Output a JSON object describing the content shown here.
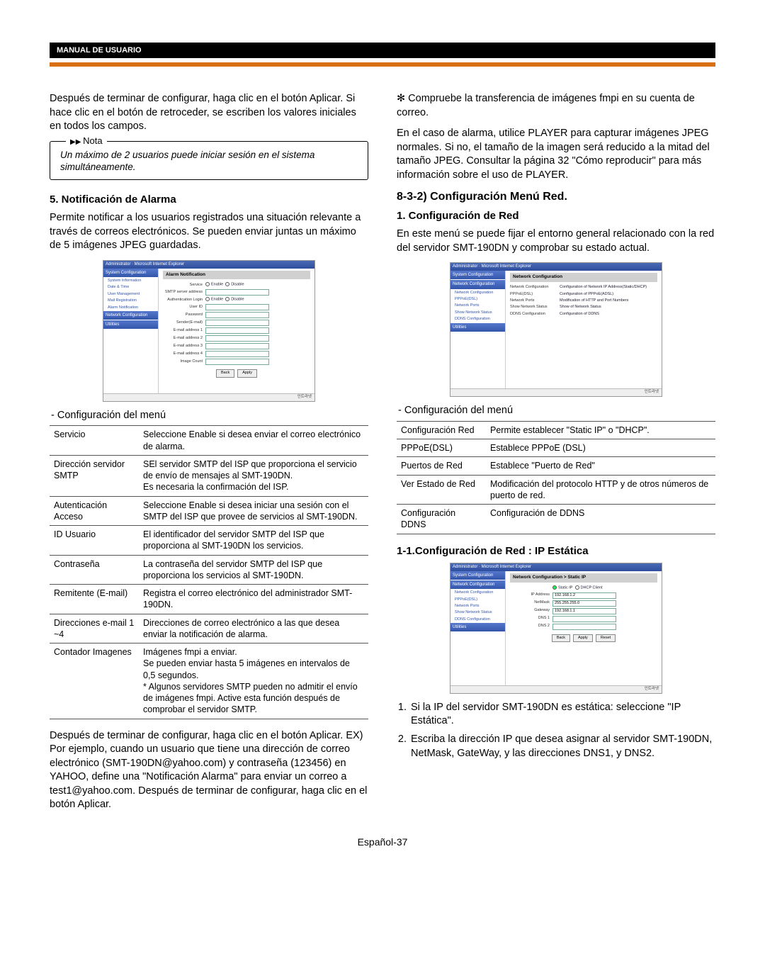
{
  "header": {
    "tab": "MANUAL DE USUARIO"
  },
  "left": {
    "p1": "Después de terminar de configurar, haga clic en el botón Aplicar. Si hace clic en el botón de retroceder, se escriben los valores iniciales en todos los campos.",
    "note_label": "Nota",
    "note_text": "Un máximo de 2 usuarios puede iniciar sesión en el sistema simultáneamente.",
    "h5": "5. Notificación de Alarma",
    "p2": "Permite notificar a los usuarios registrados una situación relevante a través de correos electrónicos. Se pueden enviar juntas un máximo de 5 imágenes JPEG guardadas.",
    "ss1": {
      "title": "Administrator · Microsoft Internet Explorer",
      "side_h1": "System Configuration",
      "side_items1": [
        "System Information",
        "Date & Time",
        "User Management",
        "Mail Registration",
        "Alarm Notification"
      ],
      "side_h2": "Network Configuration",
      "side_h3": "Utilities",
      "main_h": "Alarm Notification",
      "rows": [
        {
          "lab": "Service",
          "type": "radio",
          "a": "Enable",
          "b": "Disable"
        },
        {
          "lab": "SMTP server address",
          "type": "input"
        },
        {
          "lab": "Authentication Login",
          "type": "radio",
          "a": "Enable",
          "b": "Disable"
        },
        {
          "lab": "User ID",
          "type": "input"
        },
        {
          "lab": "Password",
          "type": "input"
        },
        {
          "lab": "Sender(E-mail)",
          "type": "input"
        },
        {
          "lab": "E-mail address 1",
          "type": "input"
        },
        {
          "lab": "E-mail address 2",
          "type": "input"
        },
        {
          "lab": "E-mail address 3",
          "type": "input"
        },
        {
          "lab": "E-mail address 4",
          "type": "input"
        },
        {
          "lab": "Image Count",
          "type": "input"
        }
      ],
      "btns": [
        "Back",
        "Apply"
      ]
    },
    "cfg_label": "-  Configuración del menú",
    "table1": [
      [
        "Servicio",
        "Seleccione Enable si desea enviar el correo electrónico de alarma."
      ],
      [
        "Dirección servidor SMTP",
        "SEl servidor SMTP del ISP que proporciona el servicio de envío de mensajes al SMT-190DN.\nEs necesaria la confirmación del ISP."
      ],
      [
        "Autenticación Acceso",
        "Seleccione Enable si desea iniciar una sesión con el SMTP del ISP que provee de servicios al SMT-190DN."
      ],
      [
        "ID Usuario",
        "El identificador del servidor SMTP del ISP que proporciona al SMT-190DN los servicios."
      ],
      [
        "Contraseña",
        "La contraseña del servidor SMTP del ISP que proporciona los servicios al SMT-190DN."
      ],
      [
        "Remitente (E-mail)",
        "Registra el correo electrónico del administrador SMT-190DN."
      ],
      [
        "Direcciones e-mail 1 ~4",
        "Direcciones de correo electrónico a las que desea enviar la notificación de alarma."
      ],
      [
        "Contador Imagenes",
        "Imágenes fmpi a enviar.\nSe pueden enviar hasta 5 imágenes en intervalos de 0,5 segundos.\n*   Algunos servidores SMTP pueden no admitir el envío de imágenes fmpi. Active esta función después de comprobar el servidor SMTP."
      ]
    ],
    "p3": "Después de terminar de configurar, haga clic en el botón Aplicar. EX) Por ejemplo, cuando un usuario que tiene una dirección de correo electrónico (SMT-190DN@yahoo.com) y contraseña (123456) en YAHOO, define una \"Notificación Alarma\" para enviar un correo a test1@yahoo.com. Después de terminar de configurar, haga clic en el botón Aplicar."
  },
  "right": {
    "star": "✻ Compruebe la transferencia de imágenes fmpi en su cuenta de correo.",
    "p1": "En el caso de alarma, utilice PLAYER para capturar imágenes JPEG normales. Si no, el tamaño de la imagen será reducido a la mitad del tamaño JPEG. Consultar la página 32 \"Cómo reproducir\" para más información sobre el uso de PLAYER.",
    "h832": "8-3-2)   Configuración Menú Red.",
    "h1": "1. Configuración de Red",
    "p2": "En este menú se puede fijar el entorno general relacionado con la red del servidor SMT-190DN y comprobar su estado actual.",
    "ss2": {
      "title": "Administrator · Microsoft Internet Explorer",
      "side_h1": "System Configuration",
      "side_h2": "Network Configuration",
      "side_items": [
        "Network Configuration",
        "PPPoE(DSL)",
        "Network Ports",
        "Show Network Status",
        "DDNS Configuration"
      ],
      "side_h3": "Utilities",
      "main_h": "Network Configuration",
      "rows2": [
        [
          "Network Configuration",
          "Configuration of Network IP Address(Static/DHCP)"
        ],
        [
          "PPPoE(DSL)",
          "Configuration of PPPoE(ADSL)"
        ],
        [
          "Network Ports",
          "Modification of HTTP and Port Numbers"
        ],
        [
          "Show Network Status",
          "Show of Network Status"
        ],
        [
          "DDNS Configuration",
          "Configuration of DDNS"
        ]
      ]
    },
    "cfg_label": "-  Configuración del menú",
    "table2": [
      [
        "Configuración Red",
        "Permite establecer \"Static IP\" o \"DHCP\"."
      ],
      [
        "PPPoE(DSL)",
        "Establece PPPoE (DSL)"
      ],
      [
        "Puertos de Red",
        "Establece \"Puerto de Red\""
      ],
      [
        "Ver Estado de Red",
        "Modificación del protocolo HTTP y de otros números de puerto de red."
      ],
      [
        "Configuración DDNS",
        "Configuración de DDNS"
      ]
    ],
    "h11": "1-1.Configuración de Red : IP Estática",
    "ss3": {
      "title": "Administrator · Microsoft Internet Explorer",
      "side_h1": "System Configuration",
      "side_h2": "Network Configuration",
      "side_items": [
        "Network Configuration",
        "PPPoE(DSL)",
        "Network Ports",
        "Show Network Status",
        "DDNS Configuration"
      ],
      "side_h3": "Utilities",
      "main_h": "Network Configuration > Static IP",
      "radio_label_a": "Static IP",
      "radio_label_b": "DHCP Client",
      "rows3": [
        {
          "lab": "IP Address",
          "v": "192.168.1.2"
        },
        {
          "lab": "NetMask",
          "v": "255.255.255.0"
        },
        {
          "lab": "Gateway",
          "v": "192.168.1.1"
        },
        {
          "lab": "DNS 1",
          "v": ""
        },
        {
          "lab": "DNS 2",
          "v": ""
        }
      ],
      "btns": [
        "Back",
        "Apply",
        "Reset"
      ]
    },
    "step1": "Si la IP del servidor SMT-190DN es estática: seleccione \"IP Estática\".",
    "step2": "Escriba la dirección IP que desea asignar al servidor SMT-190DN, NetMask, GateWay, y las direcciones DNS1, y DNS2."
  },
  "footer": "Español-37"
}
